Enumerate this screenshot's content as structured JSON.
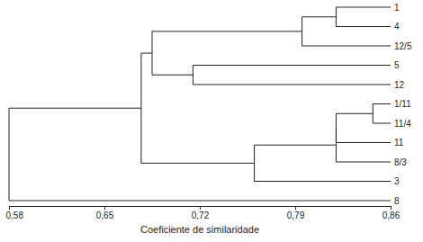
{
  "chart_data": {
    "type": "dendrogram",
    "x_label": "Coeficiente de similaridade",
    "xlim": [
      0.58,
      0.86
    ],
    "xticks": [
      {
        "value": 0.58,
        "label": "0,58"
      },
      {
        "value": 0.65,
        "label": "0,65"
      },
      {
        "value": 0.72,
        "label": "0,72"
      },
      {
        "value": 0.79,
        "label": "0,79"
      },
      {
        "value": 0.86,
        "label": "0,86"
      }
    ],
    "tree": {
      "height": 0.58,
      "children": [
        {
          "height": 0.677,
          "children": [
            {
              "height": 0.685,
              "children": [
                {
                  "height": 0.795,
                  "children": [
                    {
                      "height": 0.82,
                      "children": [
                        {
                          "label": "1"
                        },
                        {
                          "label": "4"
                        }
                      ]
                    },
                    {
                      "label": "12/5"
                    }
                  ]
                },
                {
                  "height": 0.715,
                  "children": [
                    {
                      "label": "5"
                    },
                    {
                      "label": "12"
                    }
                  ]
                }
              ]
            },
            {
              "height": 0.76,
              "children": [
                {
                  "height": 0.82,
                  "children": [
                    {
                      "height": 0.82,
                      "children": [
                        {
                          "height": 0.847,
                          "children": [
                            {
                              "label": "1/11"
                            },
                            {
                              "label": "11/4"
                            }
                          ]
                        },
                        {
                          "label": "11"
                        }
                      ]
                    },
                    {
                      "label": "8/3"
                    }
                  ]
                },
                {
                  "label": "3"
                }
              ]
            }
          ]
        },
        {
          "label": "8"
        }
      ]
    }
  }
}
